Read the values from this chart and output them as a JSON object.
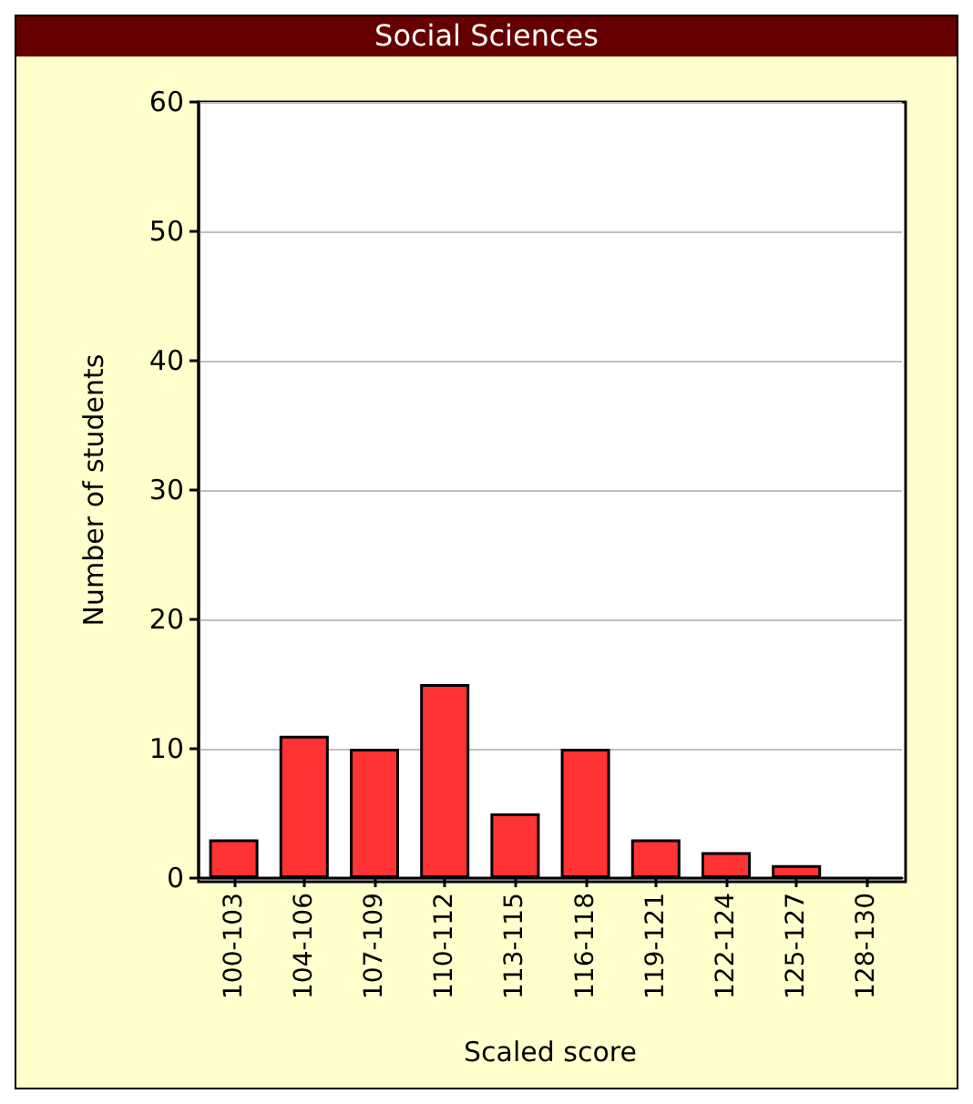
{
  "chart_data": {
    "type": "bar",
    "title": "Social Sciences",
    "xlabel": "Scaled score",
    "ylabel": "Number of students",
    "categories": [
      "100-103",
      "104-106",
      "107-109",
      "110-112",
      "113-115",
      "116-118",
      "119-121",
      "122-124",
      "125-127",
      "128-130"
    ],
    "values": [
      3,
      11,
      10,
      15,
      5,
      10,
      3,
      2,
      1,
      0
    ],
    "color": "#ff3333",
    "ylim": [
      0,
      60
    ],
    "yticks": [
      0,
      10,
      20,
      30,
      40,
      50,
      60
    ],
    "grid": "y"
  }
}
